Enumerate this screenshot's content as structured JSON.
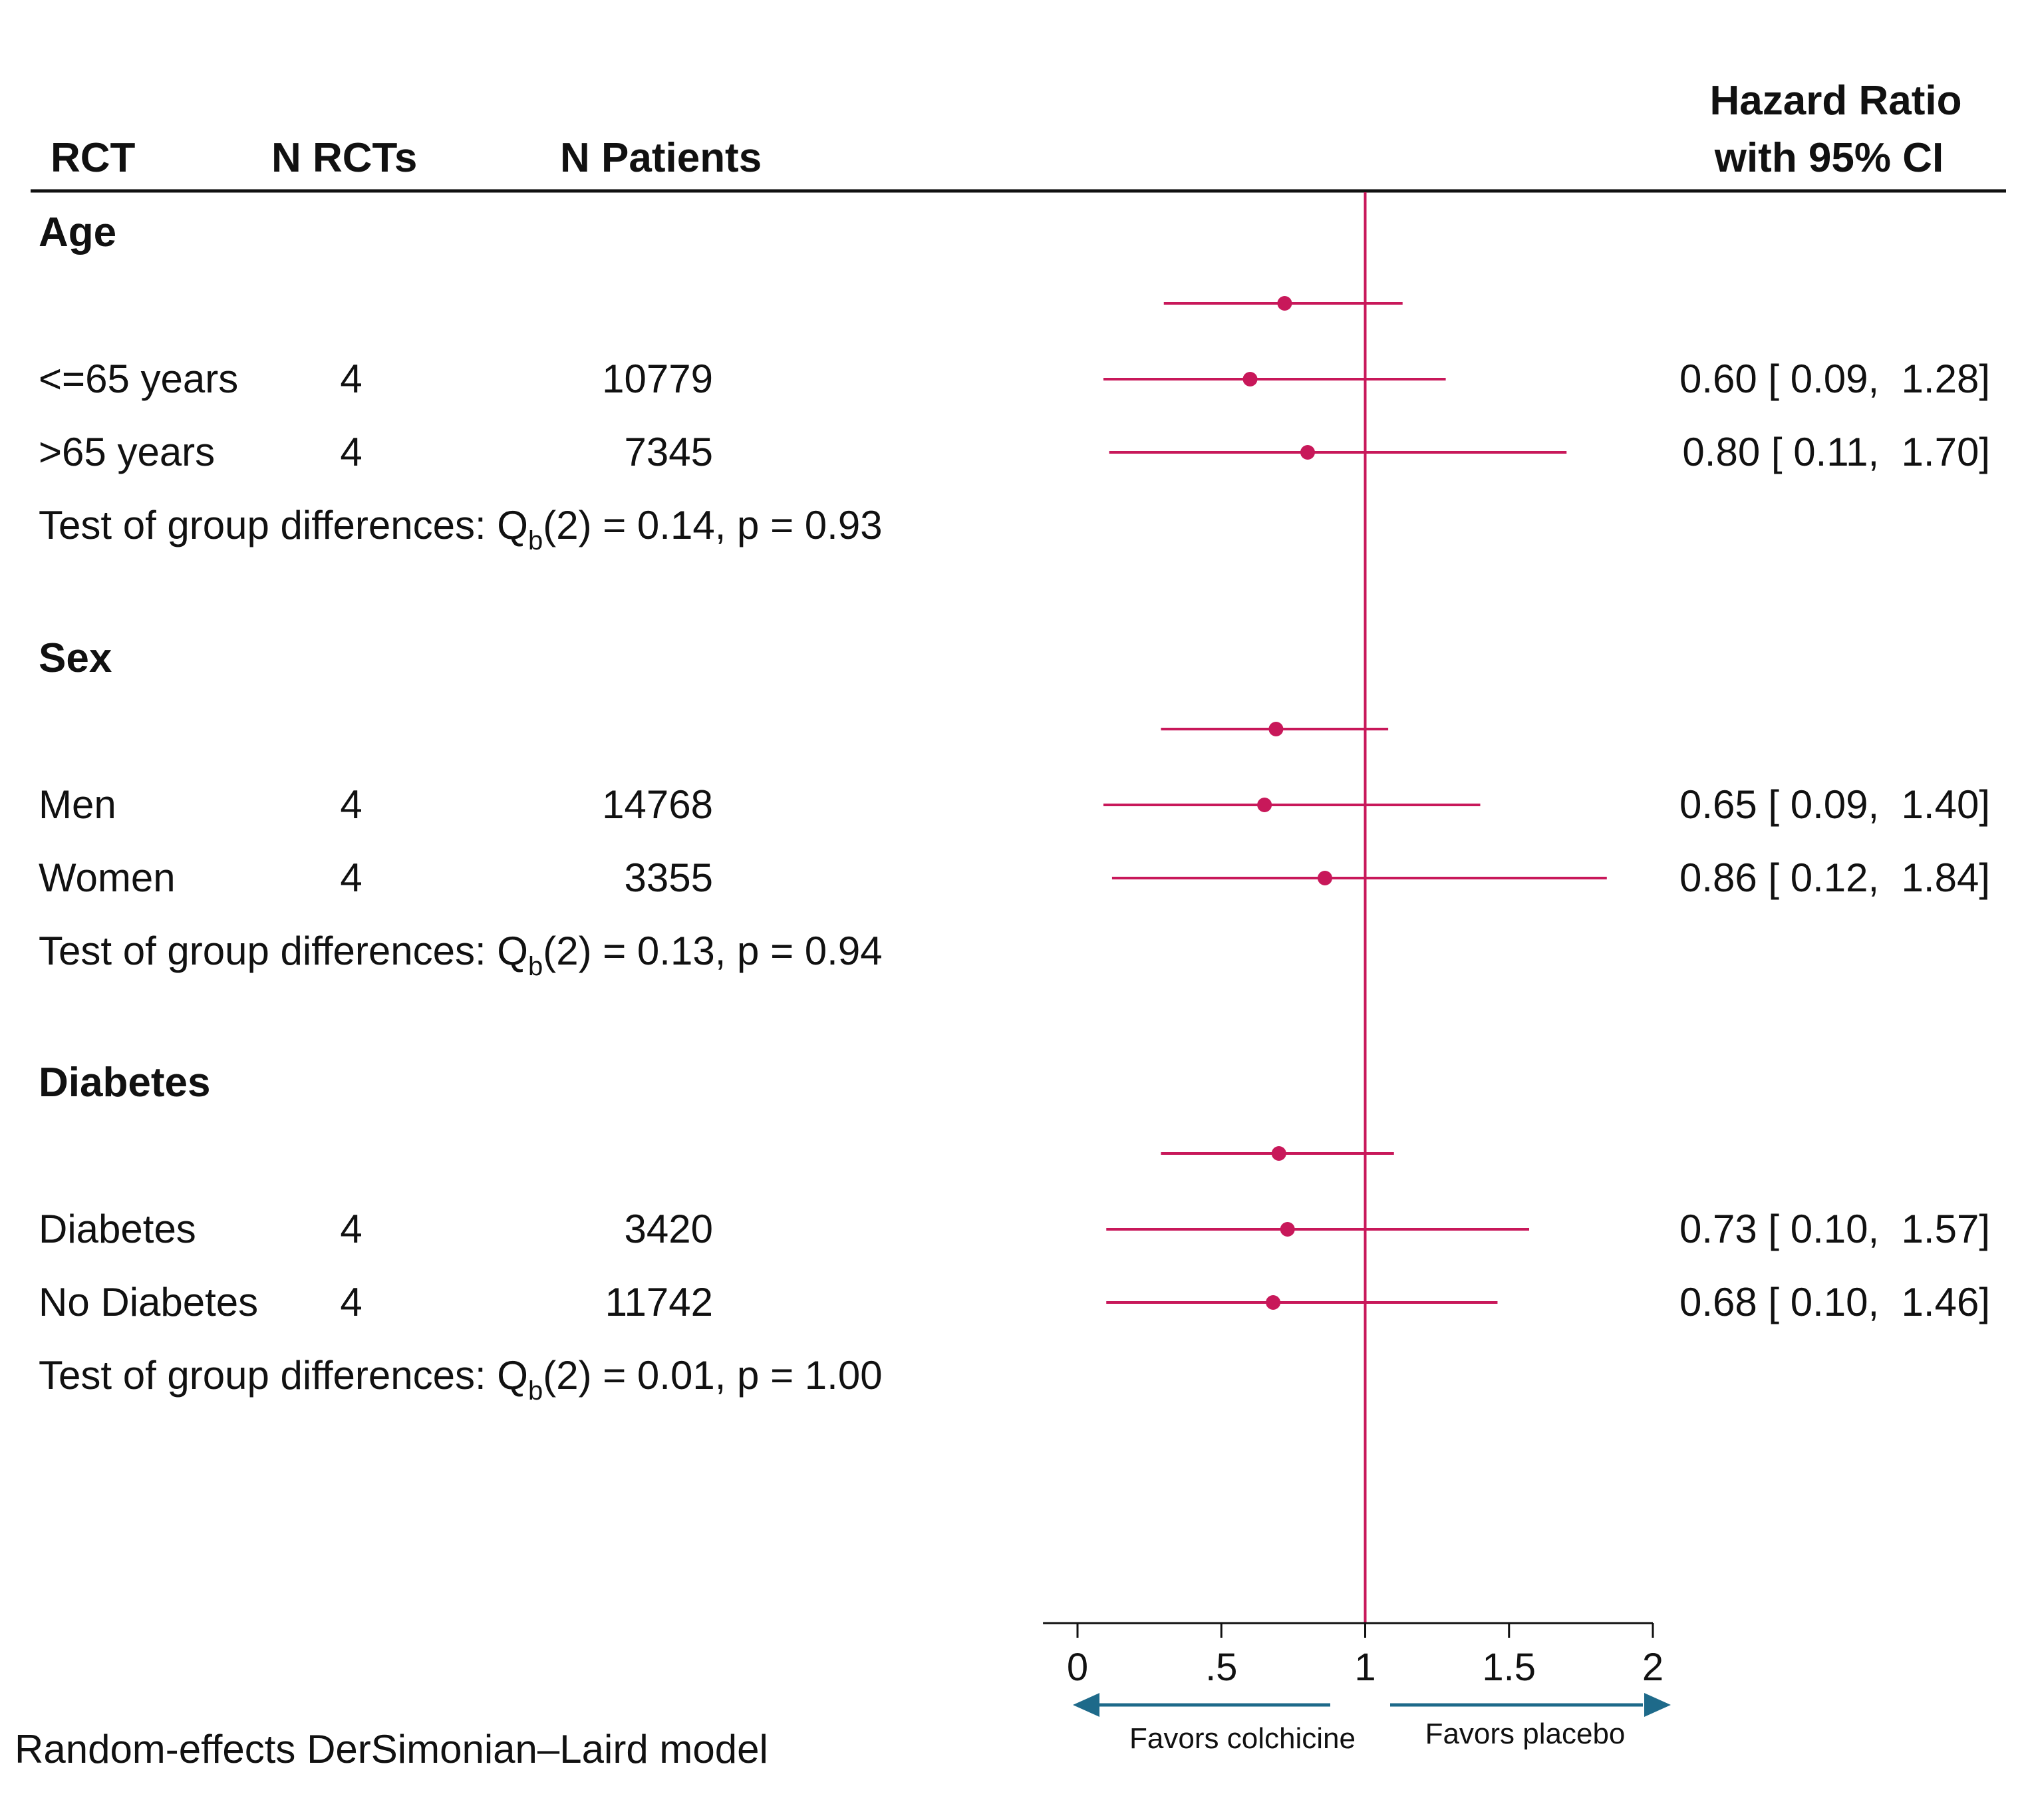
{
  "colors": {
    "point": "#c8185a",
    "arrow": "#1e6a8a",
    "text": "#111111"
  },
  "header": {
    "col_rct": "RCT",
    "col_nrcts": "N RCTs",
    "col_npatients": "N Patients",
    "col_hr_line1": "Hazard Ratio",
    "col_hr_line2": "with 95% CI"
  },
  "footer": {
    "model_note": "Random-effects DerSimonian–Laird model"
  },
  "chart_data": {
    "type": "forest",
    "xlabel": "Hazard Ratio with 95% CI",
    "xlim": [
      -0.12,
      2.0
    ],
    "ticks": [
      {
        "value": 0,
        "label": "0"
      },
      {
        "value": 0.5,
        "label": ".5"
      },
      {
        "value": 1,
        "label": "1"
      },
      {
        "value": 1.5,
        "label": "1.5"
      },
      {
        "value": 2,
        "label": "2"
      }
    ],
    "reference_line": 1,
    "direction_labels": {
      "left": "Favors colchicine",
      "right": "Favors placebo"
    },
    "groups": [
      {
        "name": "Age",
        "overall": {
          "hr": 0.72,
          "lo": 0.3,
          "hi": 1.13
        },
        "rows": [
          {
            "label": "<=65 years",
            "n_rcts": "4",
            "n_patients": "10779",
            "hr": 0.6,
            "lo": 0.09,
            "hi": 1.28,
            "ci_text": "0.60 [ 0.09,  1.28]"
          },
          {
            "label": ">65 years",
            "n_rcts": "4",
            "n_patients": "7345",
            "hr": 0.8,
            "lo": 0.11,
            "hi": 1.7,
            "ci_text": "0.80 [ 0.11,  1.70]"
          }
        ],
        "test_prefix": "Test of group differences: Q",
        "test_sub": "b",
        "test_suffix": "(2) = 0.14, p = 0.93"
      },
      {
        "name": "Sex",
        "overall": {
          "hr": 0.69,
          "lo": 0.29,
          "hi": 1.08
        },
        "rows": [
          {
            "label": "Men",
            "n_rcts": "4",
            "n_patients": "14768",
            "hr": 0.65,
            "lo": 0.09,
            "hi": 1.4,
            "ci_text": "0.65 [ 0.09,  1.40]"
          },
          {
            "label": "Women",
            "n_rcts": "4",
            "n_patients": "3355",
            "hr": 0.86,
            "lo": 0.12,
            "hi": 1.84,
            "ci_text": "0.86 [ 0.12,  1.84]"
          }
        ],
        "test_prefix": "Test of group differences: Q",
        "test_sub": "b",
        "test_suffix": "(2) = 0.13, p = 0.94"
      },
      {
        "name": "Diabetes",
        "overall": {
          "hr": 0.7,
          "lo": 0.29,
          "hi": 1.1
        },
        "rows": [
          {
            "label": "Diabetes",
            "n_rcts": "4",
            "n_patients": "3420",
            "hr": 0.73,
            "lo": 0.1,
            "hi": 1.57,
            "ci_text": "0.73 [ 0.10,  1.57]"
          },
          {
            "label": "No Diabetes",
            "n_rcts": "4",
            "n_patients": "11742",
            "hr": 0.68,
            "lo": 0.1,
            "hi": 1.46,
            "ci_text": "0.68 [ 0.10,  1.46]"
          }
        ],
        "test_prefix": "Test of group differences: Q",
        "test_sub": "b",
        "test_suffix": "(2) = 0.01, p = 1.00"
      }
    ]
  }
}
